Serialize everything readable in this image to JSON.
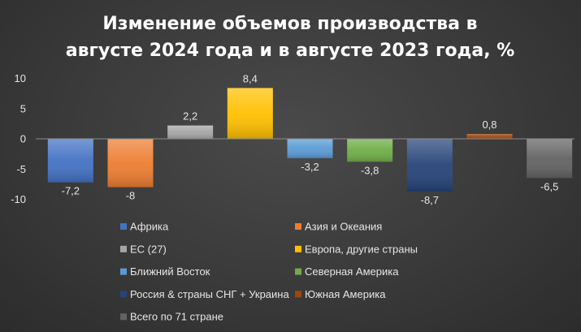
{
  "chart_data": {
    "type": "bar",
    "title": [
      "Изменение объемов производства в",
      "августе 2024 года и в августе 2023 года, %"
    ],
    "xlabel": "",
    "ylabel": "",
    "ylim": [
      -10,
      10
    ],
    "yticks": [
      10,
      5,
      0,
      -5,
      -10
    ],
    "grid": false,
    "legend_position": "bottom",
    "series": [
      {
        "name": "Африка",
        "value": -7.2,
        "label": "-7,2",
        "color": "#4472c4"
      },
      {
        "name": "Азия и Океания",
        "value": -8,
        "label": "-8",
        "color": "#ed7d31"
      },
      {
        "name": "ЕС (27)",
        "value": 2.2,
        "label": "2,2",
        "color": "#a5a5a5"
      },
      {
        "name": "Европа, другие страны",
        "value": 8.4,
        "label": "8,4",
        "color": "#ffc000"
      },
      {
        "name": "Ближний Восток",
        "value": -3.2,
        "label": "-3,2",
        "color": "#5b9bd5"
      },
      {
        "name": "Северная Америка",
        "value": -3.8,
        "label": "-3,8",
        "color": "#70ad47"
      },
      {
        "name": "Россия & страны СНГ + Украина",
        "value": -8.7,
        "label": "-8,7",
        "color": "#264478"
      },
      {
        "name": "Южная Америка",
        "value": 0.8,
        "label": "0,8",
        "color": "#9e480e"
      },
      {
        "name": "Всего по 71 стране",
        "value": -6.5,
        "label": "-6,5",
        "color": "#636363"
      }
    ]
  }
}
